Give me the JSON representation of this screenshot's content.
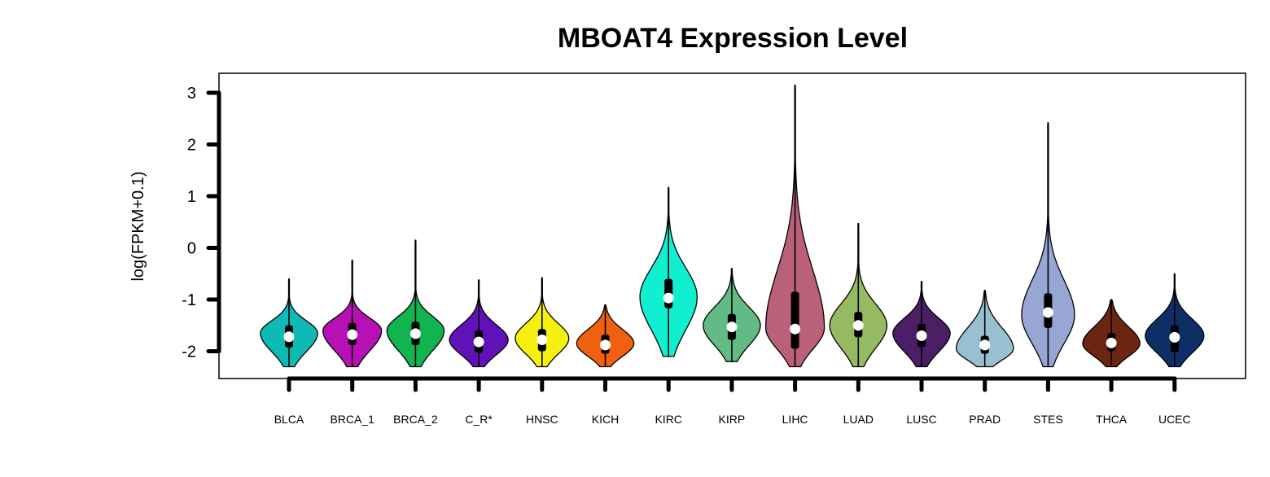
{
  "chart_data": {
    "type": "violin",
    "title": "MBOAT4 Expression Level",
    "xlabel": "",
    "ylabel": "log(FPKM+0.1)",
    "ylim": [
      -2.5,
      3.3
    ],
    "yticks": [
      3,
      2,
      1,
      0,
      -1,
      -2
    ],
    "ytick_labels": [
      "3",
      "2",
      "1",
      "0",
      "-1",
      "-2"
    ],
    "legend": "none",
    "grid": false,
    "categories": [
      "BLCA",
      "BRCA_1",
      "BRCA_2",
      "C_R*",
      "HNSC",
      "KICH",
      "KIRC",
      "KIRP",
      "LIHC",
      "LUAD",
      "LUSC",
      "PRAD",
      "STES",
      "THCA",
      "UCEC"
    ],
    "colors": [
      "#10bab4",
      "#b710b4",
      "#12b450",
      "#6111b8",
      "#f4f010",
      "#f06010",
      "#10f0d0",
      "#62ba84",
      "#ba6078",
      "#96ba62",
      "#4c1e66",
      "#98c0d0",
      "#98a6d4",
      "#6a2610",
      "#0e2e66"
    ],
    "series": [
      {
        "min": -2.3,
        "max": -0.6,
        "q1": -1.93,
        "median": -1.72,
        "q3": -1.5,
        "mode": -1.65,
        "width": 0.8
      },
      {
        "min": -2.3,
        "max": -0.24,
        "q1": -1.88,
        "median": -1.68,
        "q3": -1.45,
        "mode": -1.6,
        "width": 0.82
      },
      {
        "min": -2.3,
        "max": 0.15,
        "q1": -1.88,
        "median": -1.66,
        "q3": -1.43,
        "mode": -1.6,
        "width": 0.8
      },
      {
        "min": -2.3,
        "max": -0.62,
        "q1": -2.03,
        "median": -1.82,
        "q3": -1.6,
        "mode": -1.78,
        "width": 0.82
      },
      {
        "min": -2.3,
        "max": -0.58,
        "q1": -2.0,
        "median": -1.78,
        "q3": -1.57,
        "mode": -1.75,
        "width": 0.75
      },
      {
        "min": -2.3,
        "max": -1.1,
        "q1": -2.05,
        "median": -1.88,
        "q3": -1.68,
        "mode": -1.85,
        "width": 0.8
      },
      {
        "min": -2.1,
        "max": 1.17,
        "q1": -1.17,
        "median": -0.97,
        "q3": -0.6,
        "mode": -0.95,
        "width": 0.8
      },
      {
        "min": -2.2,
        "max": -0.4,
        "q1": -1.78,
        "median": -1.53,
        "q3": -1.28,
        "mode": -1.5,
        "width": 0.8
      },
      {
        "min": -2.3,
        "max": 3.15,
        "q1": -1.95,
        "median": -1.57,
        "q3": -0.85,
        "mode": -1.55,
        "width": 0.82
      },
      {
        "min": -2.3,
        "max": 0.47,
        "q1": -1.73,
        "median": -1.5,
        "q3": -1.24,
        "mode": -1.5,
        "width": 0.8
      },
      {
        "min": -2.3,
        "max": -0.65,
        "q1": -1.92,
        "median": -1.7,
        "q3": -1.47,
        "mode": -1.65,
        "width": 0.8
      },
      {
        "min": -2.3,
        "max": -0.82,
        "q1": -2.05,
        "median": -1.88,
        "q3": -1.7,
        "mode": -1.95,
        "width": 0.8
      },
      {
        "min": -2.3,
        "max": 2.42,
        "q1": -1.55,
        "median": -1.25,
        "q3": -0.88,
        "mode": -1.3,
        "width": 0.74
      },
      {
        "min": -2.3,
        "max": -1.0,
        "q1": -2.0,
        "median": -1.84,
        "q3": -1.65,
        "mode": -1.85,
        "width": 0.8
      },
      {
        "min": -2.3,
        "max": -0.5,
        "q1": -2.02,
        "median": -1.73,
        "q3": -1.5,
        "mode": -1.7,
        "width": 0.82
      }
    ]
  }
}
